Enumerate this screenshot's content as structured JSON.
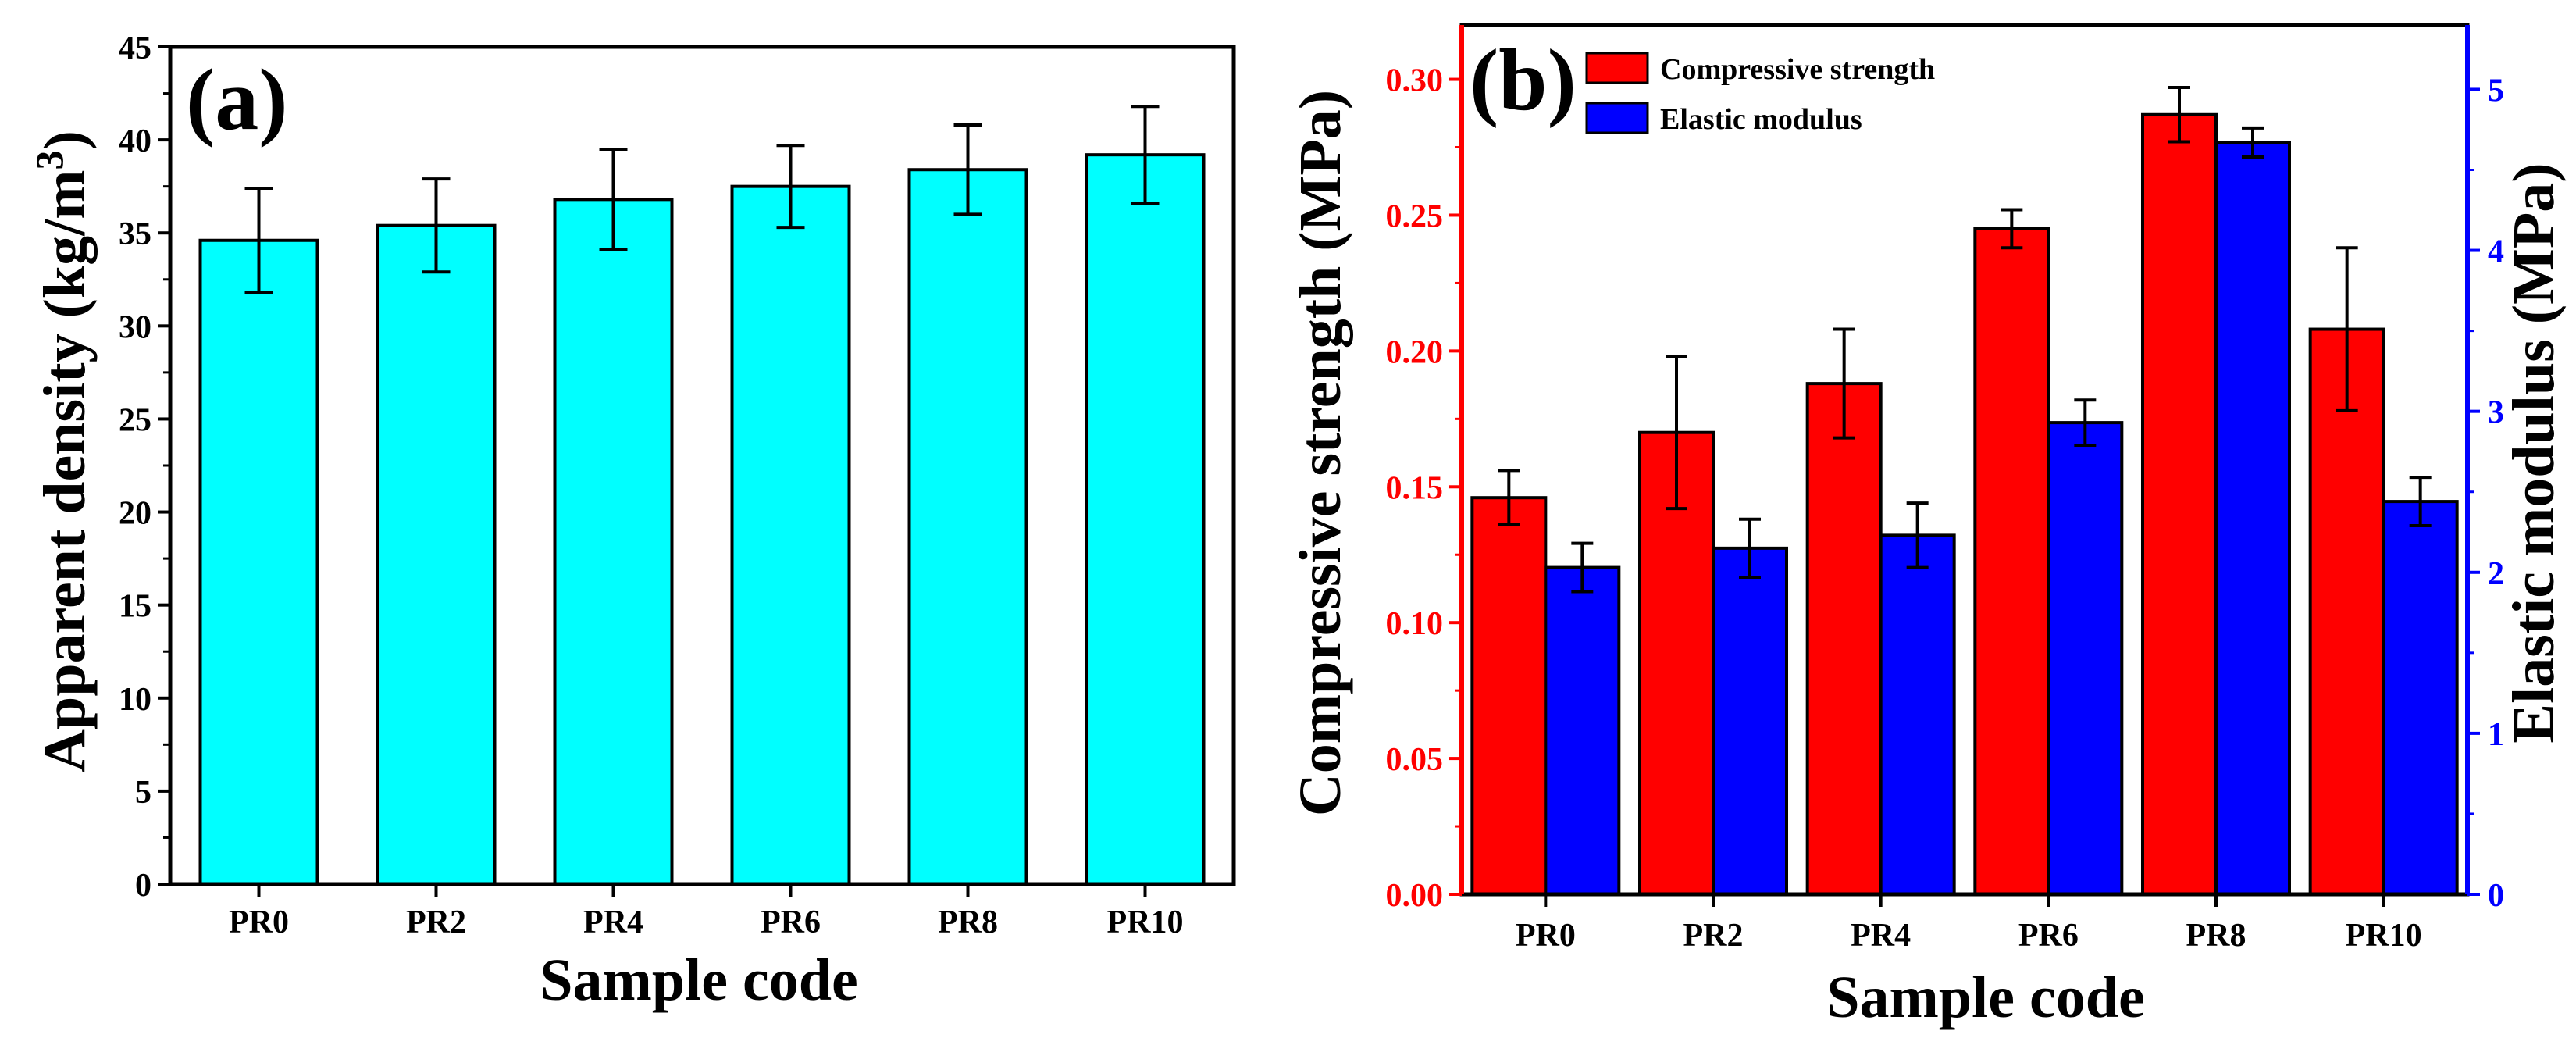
{
  "figure": {
    "colors": {
      "density_bar": "#00FFFF",
      "compressive_bar": "#FF0000",
      "modulus_bar": "#0000FF",
      "left_axis_b": "#FF0000",
      "right_axis_b": "#0000FF",
      "axis": "#000000"
    }
  },
  "chart_data": [
    {
      "type": "bar",
      "panel_label": "(a)",
      "title": "",
      "xlabel": "Sample code",
      "ylabel": "Apparent density (kg/m",
      "ylabel_superscript": "3",
      "ylabel_close": ")",
      "categories": [
        "PR0",
        "PR2",
        "PR4",
        "PR6",
        "PR8",
        "PR10"
      ],
      "values": [
        34.6,
        35.4,
        36.8,
        37.5,
        38.4,
        39.2
      ],
      "errors": [
        2.8,
        2.5,
        2.7,
        2.2,
        2.4,
        2.6
      ],
      "ylim": [
        0,
        45
      ],
      "yticks": [
        "0",
        "5",
        "10",
        "15",
        "20",
        "25",
        "30",
        "35",
        "40",
        "45"
      ],
      "grid": false
    },
    {
      "type": "bar",
      "panel_label": "(b)",
      "title": "",
      "xlabel": "Sample code",
      "ylabel": "Compressive strength (MPa)",
      "ylabel_right": "Elastic modulus (MPa)",
      "categories": [
        "PR0",
        "PR2",
        "PR4",
        "PR6",
        "PR8",
        "PR10"
      ],
      "legend_position": "top-left",
      "series": [
        {
          "name": "Compressive strength",
          "axis": "left",
          "values": [
            0.146,
            0.17,
            0.188,
            0.245,
            0.287,
            0.208
          ],
          "errors": [
            0.01,
            0.028,
            0.02,
            0.007,
            0.01,
            0.03
          ]
        },
        {
          "name": "Elastic modulus",
          "axis": "right",
          "values": [
            2.03,
            2.15,
            2.23,
            2.93,
            4.67,
            2.44
          ],
          "errors": [
            0.15,
            0.18,
            0.2,
            0.14,
            0.09,
            0.15
          ]
        }
      ],
      "ylim": [
        0,
        0.32
      ],
      "ylim_right": [
        0,
        5.4
      ],
      "yticks": [
        "0.00",
        "0.05",
        "0.10",
        "0.15",
        "0.20",
        "0.25",
        "0.30"
      ],
      "yticks_right": [
        "0",
        "1",
        "2",
        "3",
        "4",
        "5"
      ],
      "grid": false
    }
  ]
}
